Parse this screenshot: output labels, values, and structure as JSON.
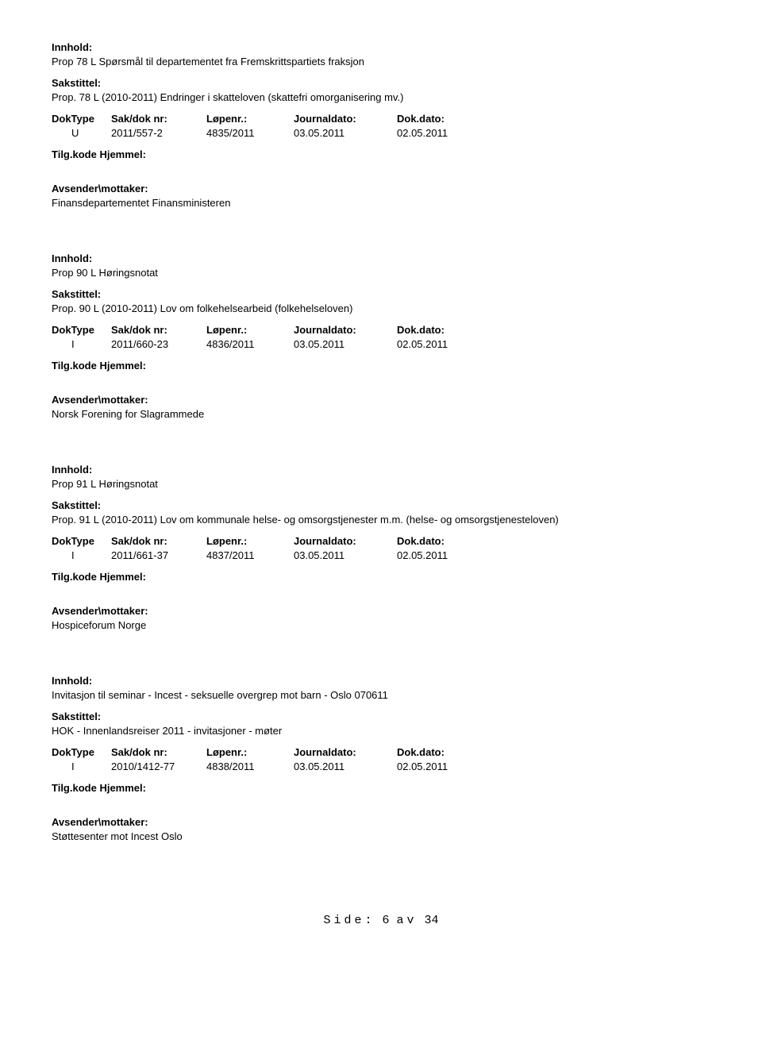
{
  "labels": {
    "innhold": "Innhold:",
    "sakstittel": "Sakstittel:",
    "doktype": "DokType",
    "sakdok": "Sak/dok nr:",
    "lopenr": "Løpenr.:",
    "journaldato": "Journaldato:",
    "dokdato": "Dok.dato:",
    "tilgkode": "Tilg.kode",
    "hjemmel": "Hjemmel:",
    "avsender": "Avsender\\mottaker:"
  },
  "records": [
    {
      "innhold": "Prop 78 L Spørsmål til departementet fra Fremskrittspartiets fraksjon",
      "sakstittel": "Prop. 78 L (2010-2011) Endringer i skatteloven (skattefri omorganisering mv.)",
      "doktype": "U",
      "sakdok": "2011/557-2",
      "lopenr": "4835/2011",
      "journaldato": "03.05.2011",
      "dokdato": "02.05.2011",
      "avsender": "Finansdepartementet Finansministeren"
    },
    {
      "innhold": "Prop 90 L Høringsnotat",
      "sakstittel": "Prop. 90 L (2010-2011) Lov om folkehelsearbeid (folkehelseloven)",
      "doktype": "I",
      "sakdok": "2011/660-23",
      "lopenr": "4836/2011",
      "journaldato": "03.05.2011",
      "dokdato": "02.05.2011",
      "avsender": "Norsk Forening for Slagrammede"
    },
    {
      "innhold": "Prop 91 L Høringsnotat",
      "sakstittel": "Prop. 91 L (2010-2011) Lov om kommunale helse- og omsorgstjenester m.m. (helse- og omsorgstjenesteloven)",
      "doktype": "I",
      "sakdok": "2011/661-37",
      "lopenr": "4837/2011",
      "journaldato": "03.05.2011",
      "dokdato": "02.05.2011",
      "avsender": "Hospiceforum Norge"
    },
    {
      "innhold": "Invitasjon til seminar - Incest - seksuelle overgrep mot barn - Oslo 070611",
      "sakstittel": "HOK - Innenlandsreiser 2011 - invitasjoner - møter",
      "doktype": "I",
      "sakdok": "2010/1412-77",
      "lopenr": "4838/2011",
      "journaldato": "03.05.2011",
      "dokdato": "02.05.2011",
      "avsender": "Støttesenter mot Incest Oslo"
    }
  ],
  "footer": {
    "side_label": "Side:",
    "page_num": "6",
    "av_label": "av",
    "total": "34"
  }
}
